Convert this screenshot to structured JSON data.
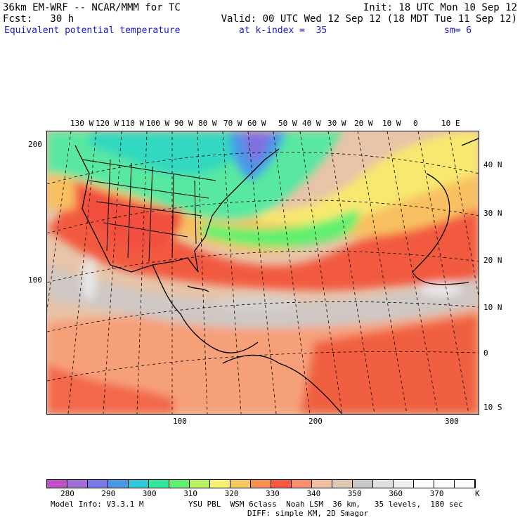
{
  "header": {
    "line1_left": "36km EM-WRF -- NCAR/MMM for TC",
    "line1_right": "Init: 18 UTC Mon 10 Sep 12",
    "line2_left": "Fcst:   30 h",
    "line2_right": "Valid: 00 UTC Wed 12 Sep 12 (18 MDT Tue 11 Sep 12)",
    "line3_field": "Equivalent potential temperature",
    "line3_level": "at k-index =  35",
    "line3_smooth": "sm= 6"
  },
  "lon_labels": [
    "130 W",
    "120 W",
    "110 W",
    "100 W",
    "90 W",
    "80 W",
    "70 W",
    "60 W",
    "50 W",
    "40 W",
    "30 W",
    "20 W",
    "10 W",
    "0",
    "10 E"
  ],
  "lat_labels": [
    "40 N",
    "30 N",
    "20 N",
    "10 N",
    "0",
    "10 S"
  ],
  "y_axis_ticks": [
    "200",
    "100"
  ],
  "x_axis_ticks": [
    "100",
    "200",
    "300"
  ],
  "colorbar": {
    "labels": [
      "280",
      "290",
      "300",
      "310",
      "320",
      "330",
      "340",
      "350",
      "360",
      "370"
    ],
    "unit": "K",
    "colors": [
      "#c050c8",
      "#a070d8",
      "#7878e8",
      "#4898e8",
      "#30c8d8",
      "#30e8a0",
      "#60f070",
      "#b8f060",
      "#f8f070",
      "#f8c860",
      "#f89050",
      "#f85840",
      "#f89070",
      "#f0c0a0",
      "#e0c8b0",
      "#c8c8c8",
      "#e0e0e0",
      "#f0f0f0",
      "#ffffff",
      "#ffffff",
      "#ffffff"
    ]
  },
  "footer": {
    "model_info": "Model Info: V3.3.1 M",
    "physics": "YSU PBL  WSM 6class  Noah LSM  36 km,   35 levels,  180 sec",
    "diffusion": "DIFF: simple KM, 2D Smagor"
  }
}
